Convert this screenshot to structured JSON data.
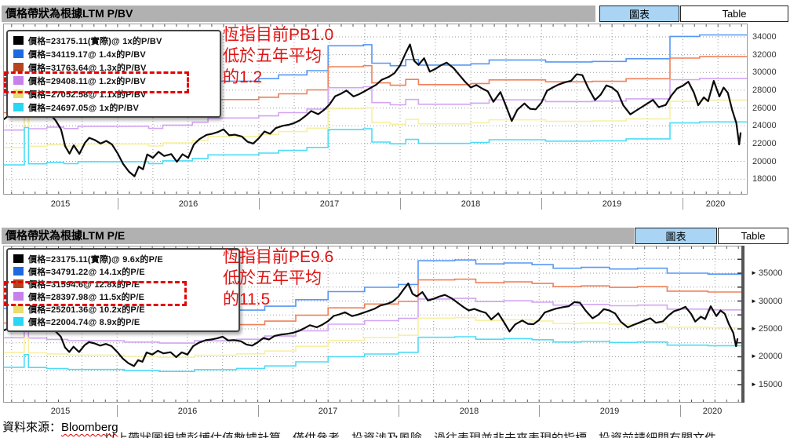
{
  "footer": {
    "source_label": "資料來源：",
    "source_name": "Bloomberg",
    "clipped_note": "以上帶狀圖根據彭博估值數據計算，僅供參考，投資涉及風險，過往表現並非未來表現的指標，投資前請細閱有關文件"
  },
  "shared_series": {
    "hsi_price": [
      [
        2015.04,
        24507
      ],
      [
        2015.08,
        24200
      ],
      [
        2015.12,
        24823
      ],
      [
        2015.16,
        24350
      ],
      [
        2015.21,
        24901
      ],
      [
        2015.25,
        25500
      ],
      [
        2015.29,
        28133
      ],
      [
        2015.33,
        28443
      ],
      [
        2015.37,
        27800
      ],
      [
        2015.4,
        27424
      ],
      [
        2015.44,
        27100
      ],
      [
        2015.48,
        26250
      ],
      [
        2015.52,
        25300
      ],
      [
        2015.56,
        24636
      ],
      [
        2015.6,
        23600
      ],
      [
        2015.63,
        21671
      ],
      [
        2015.66,
        20865
      ],
      [
        2015.69,
        21800
      ],
      [
        2015.73,
        20846
      ],
      [
        2015.77,
        22100
      ],
      [
        2015.8,
        22640
      ],
      [
        2015.84,
        22400
      ],
      [
        2015.88,
        21996
      ],
      [
        2015.92,
        22300
      ],
      [
        2015.96,
        21914
      ],
      [
        2016.0,
        20900
      ],
      [
        2016.04,
        19683
      ],
      [
        2016.08,
        18850
      ],
      [
        2016.12,
        18320
      ],
      [
        2016.15,
        19400
      ],
      [
        2016.18,
        19100
      ],
      [
        2016.21,
        20777
      ],
      [
        2016.25,
        20400
      ],
      [
        2016.29,
        21067
      ],
      [
        2016.33,
        20600
      ],
      [
        2016.38,
        20815
      ],
      [
        2016.42,
        19950
      ],
      [
        2016.46,
        20794
      ],
      [
        2016.5,
        20400
      ],
      [
        2016.54,
        21891
      ],
      [
        2016.58,
        22500
      ],
      [
        2016.63,
        22977
      ],
      [
        2016.67,
        23100
      ],
      [
        2016.71,
        23297
      ],
      [
        2016.75,
        23600
      ],
      [
        2016.79,
        22935
      ],
      [
        2016.83,
        23000
      ],
      [
        2016.88,
        22790
      ],
      [
        2016.92,
        22200
      ],
      [
        2016.96,
        22001
      ],
      [
        2017.0,
        22600
      ],
      [
        2017.04,
        23361
      ],
      [
        2017.08,
        23100
      ],
      [
        2017.12,
        23741
      ],
      [
        2017.17,
        24000
      ],
      [
        2017.21,
        24112
      ],
      [
        2017.25,
        24300
      ],
      [
        2017.29,
        24615
      ],
      [
        2017.33,
        25100
      ],
      [
        2017.37,
        25661
      ],
      [
        2017.42,
        25300
      ],
      [
        2017.46,
        25765
      ],
      [
        2017.5,
        26400
      ],
      [
        2017.54,
        27324
      ],
      [
        2017.58,
        27600
      ],
      [
        2017.62,
        27970
      ],
      [
        2017.67,
        27300
      ],
      [
        2017.71,
        27554
      ],
      [
        2017.75,
        27900
      ],
      [
        2017.79,
        28246
      ],
      [
        2017.83,
        28600
      ],
      [
        2017.87,
        29177
      ],
      [
        2017.92,
        29500
      ],
      [
        2017.96,
        29919
      ],
      [
        2018.0,
        30800
      ],
      [
        2018.04,
        32200
      ],
      [
        2018.07,
        33154
      ],
      [
        2018.1,
        31300
      ],
      [
        2018.13,
        30845
      ],
      [
        2018.17,
        31600
      ],
      [
        2018.21,
        30093
      ],
      [
        2018.25,
        30400
      ],
      [
        2018.29,
        30808
      ],
      [
        2018.33,
        31100
      ],
      [
        2018.38,
        30469
      ],
      [
        2018.42,
        29700
      ],
      [
        2018.46,
        28955
      ],
      [
        2018.5,
        28300
      ],
      [
        2018.54,
        28583
      ],
      [
        2018.58,
        28200
      ],
      [
        2018.62,
        27889
      ],
      [
        2018.66,
        26700
      ],
      [
        2018.71,
        27789
      ],
      [
        2018.75,
        26200
      ],
      [
        2018.79,
        24541
      ],
      [
        2018.83,
        25800
      ],
      [
        2018.88,
        26507
      ],
      [
        2018.92,
        25900
      ],
      [
        2018.96,
        25846
      ],
      [
        2019.0,
        26600
      ],
      [
        2019.04,
        27942
      ],
      [
        2019.08,
        28300
      ],
      [
        2019.12,
        28633
      ],
      [
        2019.17,
        28900
      ],
      [
        2019.21,
        29051
      ],
      [
        2019.25,
        29800
      ],
      [
        2019.29,
        29699
      ],
      [
        2019.33,
        28300
      ],
      [
        2019.38,
        26901
      ],
      [
        2019.42,
        27500
      ],
      [
        2019.46,
        28543
      ],
      [
        2019.5,
        28300
      ],
      [
        2019.54,
        27778
      ],
      [
        2019.58,
        26300
      ],
      [
        2019.63,
        25281
      ],
      [
        2019.67,
        25700
      ],
      [
        2019.71,
        26092
      ],
      [
        2019.75,
        26500
      ],
      [
        2019.79,
        26907
      ],
      [
        2019.83,
        26100
      ],
      [
        2019.88,
        26346
      ],
      [
        2019.92,
        27400
      ],
      [
        2019.96,
        28190
      ],
      [
        2020.0,
        28500
      ],
      [
        2020.04,
        28960
      ],
      [
        2020.08,
        27700
      ],
      [
        2020.11,
        26312
      ],
      [
        2020.15,
        27200
      ],
      [
        2020.18,
        26760
      ],
      [
        2020.22,
        29056
      ],
      [
        2020.26,
        27300
      ],
      [
        2020.29,
        28300
      ],
      [
        2020.32,
        27700
      ],
      [
        2020.35,
        25800
      ],
      [
        2020.38,
        24300
      ],
      [
        2020.4,
        21900
      ],
      [
        2020.41,
        23175
      ]
    ]
  },
  "chart_data": [
    {
      "type": "line",
      "title": "價格帶狀為根據LTM P/BV",
      "header_buttons": {
        "chart_label": "圖表",
        "table_label": "Table"
      },
      "annotation_lines": [
        "恆指目前PB1.0",
        "低於五年平均",
        "的1.2"
      ],
      "legend": [
        {
          "swatch": "#000000",
          "label": "價格=23175.11(實際)@ 1x的P/BV"
        },
        {
          "swatch": "#1d6ae0",
          "label": "價格=34119.17@ 1.4x的P/BV"
        },
        {
          "swatch": "#b5441f",
          "label": "價格=31763.64@ 1.3x的P/BV"
        },
        {
          "swatch": "#c781ea",
          "label": "價格=29408.11@ 1.2x的P/BV"
        },
        {
          "swatch": "#e9de6e",
          "label": "價格=27052.58@ 1.1x的P/BV"
        },
        {
          "swatch": "#28d7f2",
          "label": "價格=24697.05@ 1x的P/BV"
        }
      ],
      "highlighted_rows": [
        3
      ],
      "x_ticklabels": [
        "2015",
        "2016",
        "2017",
        "2018",
        "2019",
        "2020"
      ],
      "y_ticks": [
        34000,
        32000,
        30000,
        28000,
        26000,
        24000,
        22000,
        20000,
        18000
      ],
      "y_tick_arrows": false,
      "y_axis_thick": false,
      "xlim": [
        2015.19,
        2020.46
      ],
      "ylim": [
        16250,
        35500
      ],
      "grid_y": [
        18000,
        20000,
        22000,
        24000,
        26000,
        28000,
        30000,
        32000,
        34000
      ],
      "bands": {
        "base_name": "book_value_x1",
        "base_points": [
          [
            2015.16,
            19600
          ],
          [
            2015.34,
            23800
          ],
          [
            2015.37,
            19720
          ],
          [
            2015.5,
            19880
          ],
          [
            2015.62,
            19740
          ],
          [
            2015.72,
            19950
          ],
          [
            2016.12,
            19960
          ],
          [
            2016.22,
            19750
          ],
          [
            2016.32,
            20060
          ],
          [
            2016.53,
            20330
          ],
          [
            2016.64,
            20730
          ],
          [
            2017.0,
            20930
          ],
          [
            2017.14,
            21230
          ],
          [
            2017.34,
            21570
          ],
          [
            2017.49,
            23570
          ],
          [
            2017.74,
            23660
          ],
          [
            2017.8,
            22170
          ],
          [
            2017.93,
            21970
          ],
          [
            2018.04,
            22470
          ],
          [
            2018.13,
            22020
          ],
          [
            2018.5,
            22120
          ],
          [
            2018.63,
            22430
          ],
          [
            2019.03,
            22270
          ],
          [
            2019.36,
            22310
          ],
          [
            2019.6,
            22530
          ],
          [
            2019.91,
            24320
          ],
          [
            2020.12,
            24440
          ],
          [
            2020.44,
            24440
          ]
        ],
        "multiples": [
          {
            "m": 1.4,
            "color": "#5598f5"
          },
          {
            "m": 1.3,
            "color": "#f08058"
          },
          {
            "m": 1.2,
            "color": "#d3a5f3"
          },
          {
            "m": 1.1,
            "color": "#f7f0a2"
          },
          {
            "m": 1.0,
            "color": "#4cdcf8"
          }
        ]
      },
      "price": {
        "name": "恆生指數(實際價格)",
        "color": "#0a0a0a"
      }
    },
    {
      "type": "line",
      "title": "價格帶狀為根據LTM P/E",
      "header_buttons": {
        "chart_label": "圖表",
        "table_label": "Table"
      },
      "annotation_lines": [
        "恆指目前PE9.6",
        "低於五年平均",
        "的11.5"
      ],
      "legend": [
        {
          "swatch": "#000000",
          "label": "價格=23175.11(實際)@ 9.6x的P/E"
        },
        {
          "swatch": "#1d6ae0",
          "label": "價格=34791.22@ 14.1x的P/E"
        },
        {
          "swatch": "#b5441f",
          "label": "價格=31594.6@ 12.8x的P/E"
        },
        {
          "swatch": "#c781ea",
          "label": "價格=28397.98@ 11.5x的P/E"
        },
        {
          "swatch": "#e9de6e",
          "label": "價格=25201.36@ 10.2x的P/E"
        },
        {
          "swatch": "#28d7f2",
          "label": "價格=22004.74@ 8.9x的P/E"
        }
      ],
      "highlighted_rows": [
        2,
        3
      ],
      "x_ticklabels": [
        "2015",
        "2016",
        "2017",
        "2018",
        "2019",
        "2020"
      ],
      "y_ticks": [
        35000,
        30000,
        25000,
        20000,
        15000
      ],
      "y_tick_arrows": true,
      "y_axis_thick": true,
      "xlim": [
        2015.19,
        2020.46
      ],
      "ylim": [
        11760,
        39930
      ],
      "grid_y": [
        15000,
        17500,
        20000,
        22500,
        25000,
        27500,
        30000,
        32500,
        35000,
        37500
      ],
      "bands": {
        "base_name": "eps_x1",
        "base_points": [
          [
            2015.16,
            2035
          ],
          [
            2015.34,
            2290
          ],
          [
            2015.37,
            2030
          ],
          [
            2015.5,
            2010
          ],
          [
            2015.65,
            1990
          ],
          [
            2016.05,
            1968
          ],
          [
            2016.3,
            1952
          ],
          [
            2016.55,
            1988
          ],
          [
            2016.85,
            2012
          ],
          [
            2017.05,
            2062
          ],
          [
            2017.27,
            2145
          ],
          [
            2017.5,
            2248
          ],
          [
            2017.76,
            2302
          ],
          [
            2018.0,
            2338
          ],
          [
            2018.14,
            2640
          ],
          [
            2018.4,
            2650
          ],
          [
            2018.55,
            2600
          ],
          [
            2018.75,
            2612
          ],
          [
            2018.95,
            2590
          ],
          [
            2019.1,
            2545
          ],
          [
            2019.3,
            2556
          ],
          [
            2019.5,
            2535
          ],
          [
            2019.7,
            2545
          ],
          [
            2019.91,
            2482
          ],
          [
            2020.2,
            2470
          ],
          [
            2020.44,
            2470
          ]
        ],
        "multiples": [
          {
            "m": 14.1,
            "color": "#5598f5"
          },
          {
            "m": 12.8,
            "color": "#f08058"
          },
          {
            "m": 11.5,
            "color": "#d3a5f3"
          },
          {
            "m": 10.2,
            "color": "#f7f0a2"
          },
          {
            "m": 8.9,
            "color": "#4cdcf8"
          }
        ]
      },
      "price": {
        "name": "恆生指數(實際價格)",
        "color": "#0a0a0a"
      }
    }
  ]
}
